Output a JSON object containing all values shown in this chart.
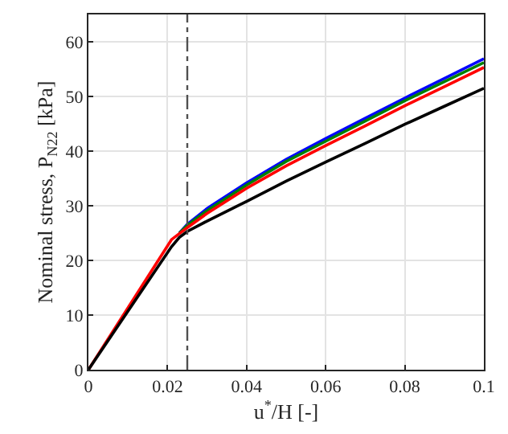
{
  "chart_data": {
    "type": "line",
    "xlabel": "u$^{*}$/H [-]",
    "ylabel": "Nominal stress, P$_{N22}$ [kPa]",
    "xlim": [
      0,
      0.1
    ],
    "xticks": [
      0,
      0.02,
      0.04,
      0.06,
      0.08,
      0.1
    ],
    "ylim": [
      0,
      65
    ],
    "yticks": [
      0,
      10,
      20,
      30,
      40,
      50,
      60
    ],
    "grid": true,
    "marker": "none",
    "line_style": "solid",
    "x": [
      0,
      0.021,
      0.023,
      0.025,
      0.03,
      0.04,
      0.05,
      0.06,
      0.07,
      0.08,
      0.09,
      0.1
    ],
    "series": [
      {
        "color": "#0000ff",
        "values": [
          null,
          null,
          25,
          26.6,
          29.5,
          34.2,
          38.5,
          42.3,
          46,
          49.7,
          53.3,
          56.9
        ]
      },
      {
        "color": "#008000",
        "values": [
          null,
          null,
          25,
          26.4,
          29.1,
          33.8,
          38.1,
          41.8,
          45.5,
          49.2,
          52.7,
          56.2
        ]
      },
      {
        "color": "#ff0000",
        "values": [
          0,
          23.8,
          24.9,
          26,
          28.6,
          33.2,
          37.3,
          41,
          44.6,
          48.3,
          51.8,
          55.3
        ]
      },
      {
        "color": "#000000",
        "values": [
          0,
          22.5,
          24.2,
          25.3,
          27.2,
          30.8,
          34.5,
          38,
          41.4,
          44.9,
          48.2,
          51.5
        ]
      }
    ],
    "ref_lines": [
      {
        "axis": "x",
        "value": 0.025,
        "color": "#505050",
        "line_style": "dashdot"
      }
    ]
  }
}
